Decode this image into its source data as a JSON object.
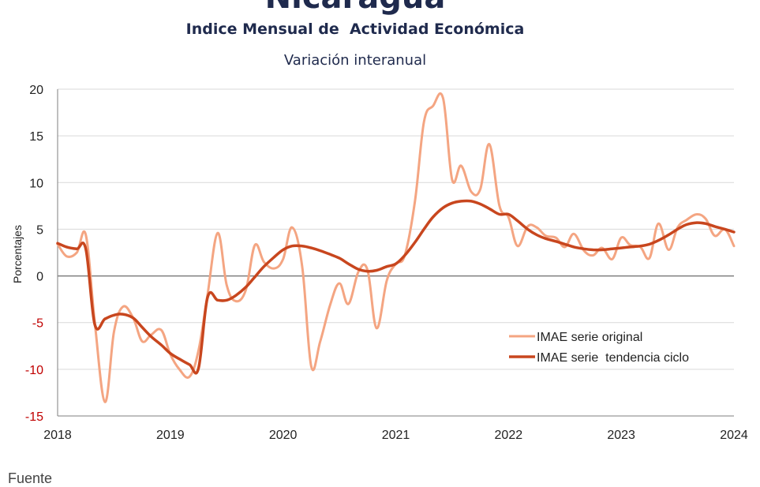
{
  "header": {
    "title": "Nicaragua",
    "subtitle": "Indice Mensual de  Actividad Económica",
    "caption": "Variación interanual"
  },
  "footer": {
    "text": "Fuente"
  },
  "chart_data": {
    "type": "line",
    "ylabel": "Porcentajes",
    "xlabel": "",
    "ylim": [
      -15,
      20
    ],
    "yticks": [
      20,
      15,
      10,
      5,
      0,
      -5,
      -10,
      -15
    ],
    "xticks": [
      "2018",
      "2019",
      "2020",
      "2021",
      "2022",
      "2023",
      "2024"
    ],
    "xlim": [
      2018,
      2024
    ],
    "grid": true,
    "legend_position": "lower-right",
    "series": [
      {
        "name": "IMAE serie original",
        "color": "#f4a582",
        "width": 3,
        "points": [
          [
            2018.0,
            3.4
          ],
          [
            2018.08,
            2.1
          ],
          [
            2018.17,
            2.5
          ],
          [
            2018.25,
            4.4
          ],
          [
            2018.33,
            -5.0
          ],
          [
            2018.42,
            -13.5
          ],
          [
            2018.5,
            -6.0
          ],
          [
            2018.58,
            -3.3
          ],
          [
            2018.67,
            -4.5
          ],
          [
            2018.75,
            -7.0
          ],
          [
            2018.83,
            -6.3
          ],
          [
            2018.92,
            -5.8
          ],
          [
            2019.0,
            -8.4
          ],
          [
            2019.08,
            -10.0
          ],
          [
            2019.17,
            -10.8
          ],
          [
            2019.25,
            -8.0
          ],
          [
            2019.33,
            -2.0
          ],
          [
            2019.42,
            4.6
          ],
          [
            2019.5,
            -1.0
          ],
          [
            2019.58,
            -2.7
          ],
          [
            2019.67,
            -1.5
          ],
          [
            2019.75,
            3.3
          ],
          [
            2019.83,
            1.5
          ],
          [
            2019.92,
            0.8
          ],
          [
            2020.0,
            1.8
          ],
          [
            2020.08,
            5.2
          ],
          [
            2020.17,
            1.0
          ],
          [
            2020.25,
            -9.7
          ],
          [
            2020.33,
            -7.0
          ],
          [
            2020.42,
            -3.0
          ],
          [
            2020.5,
            -0.8
          ],
          [
            2020.58,
            -3.0
          ],
          [
            2020.67,
            0.5
          ],
          [
            2020.75,
            0.6
          ],
          [
            2020.83,
            -5.6
          ],
          [
            2020.92,
            -0.5
          ],
          [
            2021.0,
            1.3
          ],
          [
            2021.08,
            2.2
          ],
          [
            2021.17,
            8.0
          ],
          [
            2021.25,
            16.5
          ],
          [
            2021.33,
            18.2
          ],
          [
            2021.42,
            19.0
          ],
          [
            2021.5,
            10.3
          ],
          [
            2021.58,
            11.8
          ],
          [
            2021.67,
            9.0
          ],
          [
            2021.75,
            9.3
          ],
          [
            2021.83,
            14.1
          ],
          [
            2021.92,
            7.5
          ],
          [
            2022.0,
            6.3
          ],
          [
            2022.08,
            3.2
          ],
          [
            2022.17,
            5.3
          ],
          [
            2022.25,
            5.2
          ],
          [
            2022.33,
            4.3
          ],
          [
            2022.42,
            4.1
          ],
          [
            2022.5,
            3.1
          ],
          [
            2022.58,
            4.5
          ],
          [
            2022.67,
            2.7
          ],
          [
            2022.75,
            2.2
          ],
          [
            2022.83,
            3.0
          ],
          [
            2022.92,
            1.8
          ],
          [
            2023.0,
            4.1
          ],
          [
            2023.08,
            3.3
          ],
          [
            2023.17,
            3.1
          ],
          [
            2023.25,
            1.9
          ],
          [
            2023.33,
            5.6
          ],
          [
            2023.42,
            2.8
          ],
          [
            2023.5,
            5.2
          ],
          [
            2023.58,
            6.0
          ],
          [
            2023.67,
            6.6
          ],
          [
            2023.75,
            6.1
          ],
          [
            2023.83,
            4.3
          ],
          [
            2023.92,
            5.0
          ],
          [
            2024.0,
            3.2
          ]
        ]
      },
      {
        "name": "IMAE serie  tendencia ciclo",
        "color": "#c8461e",
        "width": 3.5,
        "points": [
          [
            2018.0,
            3.5
          ],
          [
            2018.08,
            3.1
          ],
          [
            2018.17,
            2.9
          ],
          [
            2018.25,
            2.9
          ],
          [
            2018.33,
            -5.2
          ],
          [
            2018.42,
            -4.6
          ],
          [
            2018.5,
            -4.2
          ],
          [
            2018.58,
            -4.1
          ],
          [
            2018.67,
            -4.5
          ],
          [
            2018.75,
            -5.5
          ],
          [
            2018.83,
            -6.5
          ],
          [
            2018.92,
            -7.4
          ],
          [
            2019.0,
            -8.3
          ],
          [
            2019.08,
            -8.9
          ],
          [
            2019.17,
            -9.5
          ],
          [
            2019.25,
            -9.9
          ],
          [
            2019.33,
            -2.3
          ],
          [
            2019.42,
            -2.6
          ],
          [
            2019.5,
            -2.6
          ],
          [
            2019.58,
            -2.1
          ],
          [
            2019.67,
            -1.2
          ],
          [
            2019.75,
            -0.1
          ],
          [
            2019.83,
            1.0
          ],
          [
            2019.92,
            2.0
          ],
          [
            2020.0,
            2.8
          ],
          [
            2020.08,
            3.2
          ],
          [
            2020.17,
            3.2
          ],
          [
            2020.25,
            3.0
          ],
          [
            2020.33,
            2.7
          ],
          [
            2020.42,
            2.3
          ],
          [
            2020.5,
            1.9
          ],
          [
            2020.58,
            1.3
          ],
          [
            2020.67,
            0.7
          ],
          [
            2020.75,
            0.5
          ],
          [
            2020.83,
            0.6
          ],
          [
            2020.92,
            1.0
          ],
          [
            2021.0,
            1.3
          ],
          [
            2021.08,
            2.2
          ],
          [
            2021.17,
            3.6
          ],
          [
            2021.25,
            5.0
          ],
          [
            2021.33,
            6.3
          ],
          [
            2021.42,
            7.3
          ],
          [
            2021.5,
            7.8
          ],
          [
            2021.58,
            8.0
          ],
          [
            2021.67,
            8.0
          ],
          [
            2021.75,
            7.7
          ],
          [
            2021.83,
            7.2
          ],
          [
            2021.92,
            6.6
          ],
          [
            2022.0,
            6.6
          ],
          [
            2022.08,
            5.9
          ],
          [
            2022.17,
            5.0
          ],
          [
            2022.25,
            4.4
          ],
          [
            2022.33,
            4.0
          ],
          [
            2022.42,
            3.7
          ],
          [
            2022.5,
            3.4
          ],
          [
            2022.58,
            3.1
          ],
          [
            2022.67,
            2.9
          ],
          [
            2022.75,
            2.8
          ],
          [
            2022.83,
            2.8
          ],
          [
            2022.92,
            2.9
          ],
          [
            2023.0,
            3.0
          ],
          [
            2023.08,
            3.1
          ],
          [
            2023.17,
            3.2
          ],
          [
            2023.25,
            3.4
          ],
          [
            2023.33,
            3.8
          ],
          [
            2023.42,
            4.4
          ],
          [
            2023.5,
            5.0
          ],
          [
            2023.58,
            5.5
          ],
          [
            2023.67,
            5.7
          ],
          [
            2023.75,
            5.6
          ],
          [
            2023.83,
            5.3
          ],
          [
            2023.92,
            5.0
          ],
          [
            2024.0,
            4.7
          ]
        ]
      }
    ]
  }
}
